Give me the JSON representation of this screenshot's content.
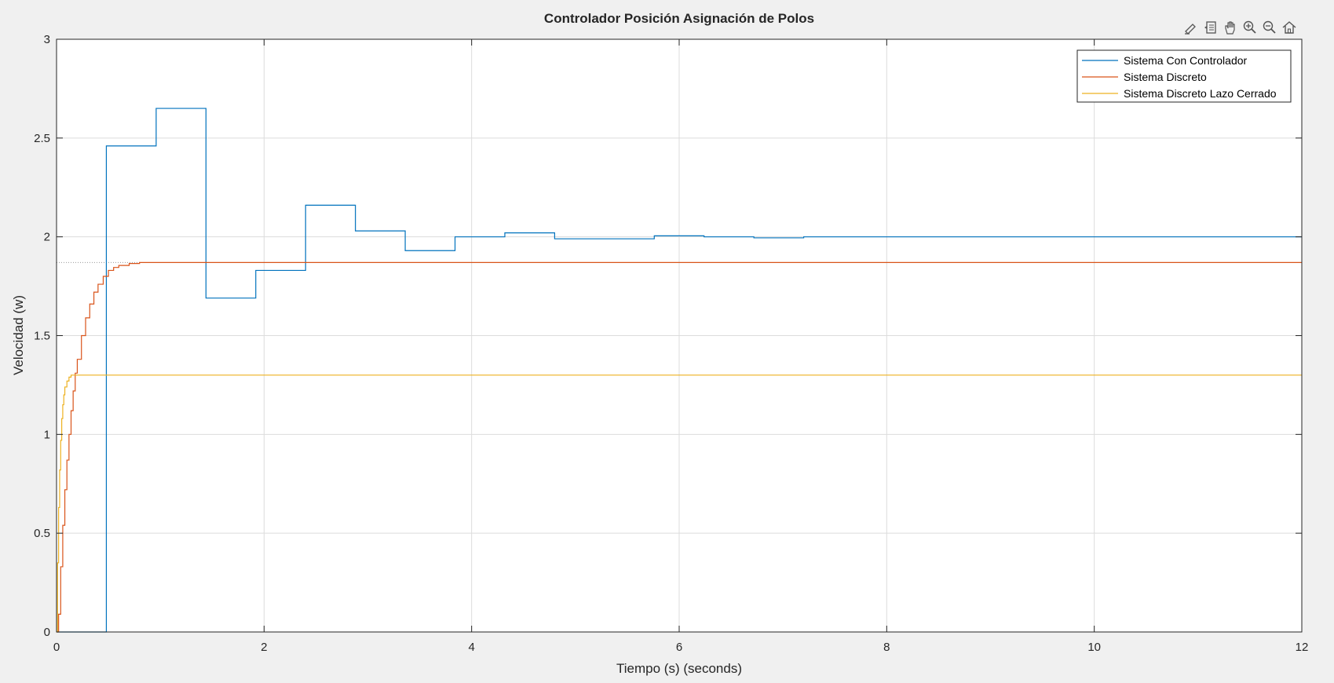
{
  "chart_data": {
    "type": "line",
    "title": "Controlador Posición Asignación de Polos",
    "xlabel": "Tiempo (s) (seconds)",
    "ylabel": "Velocidad (w)",
    "xlim": [
      0,
      12
    ],
    "ylim": [
      0,
      3
    ],
    "xticks": [
      0,
      2,
      4,
      6,
      8,
      10,
      12
    ],
    "yticks": [
      0,
      0.5,
      1,
      1.5,
      2,
      2.5,
      3
    ],
    "grid": true,
    "legend_position": "top-right",
    "series": [
      {
        "name": "Sistema Con Controlador",
        "color": "#0072BD",
        "step": true,
        "x": [
          0,
          0.48,
          0.96,
          1.44,
          1.92,
          2.4,
          2.88,
          3.36,
          3.84,
          4.32,
          4.8,
          5.76,
          6.24,
          6.72,
          7.2,
          12
        ],
        "y": [
          0,
          2.46,
          2.65,
          1.69,
          1.83,
          2.16,
          2.03,
          1.93,
          2.0,
          2.02,
          1.99,
          2.005,
          2.0,
          1.995,
          2.0,
          2.0
        ]
      },
      {
        "name": "Sistema Discreto",
        "color": "#D95319",
        "step": true,
        "x": [
          0,
          0.02,
          0.04,
          0.06,
          0.08,
          0.1,
          0.12,
          0.14,
          0.16,
          0.18,
          0.2,
          0.24,
          0.28,
          0.32,
          0.36,
          0.4,
          0.45,
          0.5,
          0.55,
          0.6,
          0.7,
          0.8,
          12
        ],
        "y": [
          0,
          0.09,
          0.33,
          0.54,
          0.72,
          0.87,
          1.0,
          1.12,
          1.22,
          1.31,
          1.38,
          1.5,
          1.59,
          1.66,
          1.72,
          1.76,
          1.8,
          1.83,
          1.845,
          1.855,
          1.865,
          1.87,
          1.87
        ]
      },
      {
        "name": "Sistema Discreto Lazo Cerrado",
        "color": "#EDB120",
        "step": true,
        "x": [
          0,
          0.01,
          0.02,
          0.03,
          0.04,
          0.05,
          0.06,
          0.07,
          0.08,
          0.1,
          0.12,
          0.14,
          12
        ],
        "y": [
          0,
          0.35,
          0.63,
          0.82,
          0.97,
          1.08,
          1.15,
          1.2,
          1.24,
          1.27,
          1.29,
          1.3,
          1.3
        ]
      }
    ],
    "reference_line": {
      "y": 1.87,
      "x_start": 0,
      "x_end": 0.8,
      "style": "dotted",
      "color": "#9a9a9a"
    }
  },
  "toolbar": {
    "icons": [
      "brush-icon",
      "datatip-icon",
      "pan-icon",
      "zoom-in-icon",
      "zoom-out-icon",
      "home-icon"
    ]
  }
}
